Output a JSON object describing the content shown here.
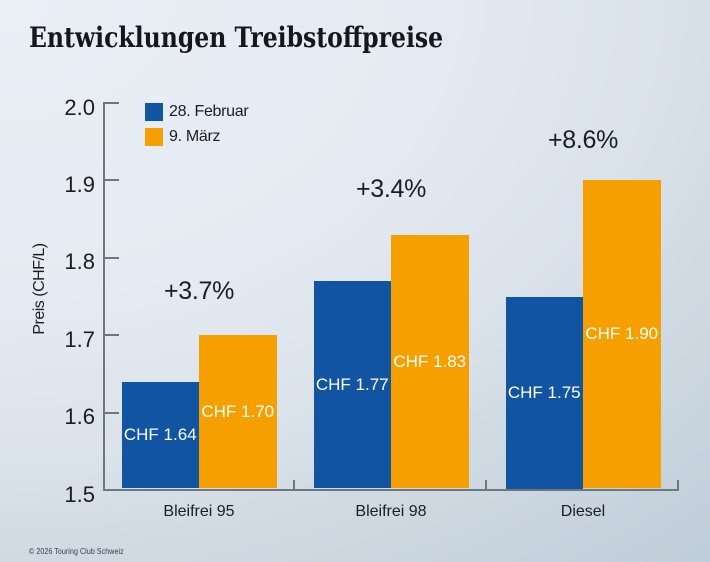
{
  "title": "Entwicklungen Treibstoffpreise",
  "footer": "© 2026 Touring Club Schweiz",
  "colors": {
    "series1": "#1155a2",
    "series2": "#f5a000",
    "axis": "#6e7780",
    "text": "#1b1c24",
    "title_text": "#16161f",
    "bar_label_text": "#ffffff",
    "background_light": "#eaeff6",
    "background_dark": "#c0ced9"
  },
  "chart_data": {
    "type": "bar",
    "title": "Entwicklungen Treibstoffpreise",
    "categories": [
      "Bleifrei 95",
      "Bleifrei 98",
      "Diesel"
    ],
    "series": [
      {
        "name": "28. Februar",
        "color": "#1155a2",
        "values": [
          1.64,
          1.77,
          1.75
        ],
        "value_labels": [
          "CHF 1.64",
          "CHF 1.77",
          "CHF 1.75"
        ]
      },
      {
        "name": "9. März",
        "color": "#f5a000",
        "values": [
          1.7,
          1.83,
          1.9
        ],
        "value_labels": [
          "CHF 1.70",
          "CHF 1.83",
          "CHF 1.90"
        ]
      }
    ],
    "change_labels": [
      "+3.7%",
      "+3.4%",
      "+8.6%"
    ],
    "xlabel": "",
    "ylabel": "Preis (CHF/L)",
    "ylim": [
      1.5,
      2.0
    ],
    "yticks": [
      "1.5",
      "1.6",
      "1.7",
      "1.8",
      "1.9",
      "2.0"
    ],
    "grid": false,
    "legend_position": "upper left inside"
  }
}
